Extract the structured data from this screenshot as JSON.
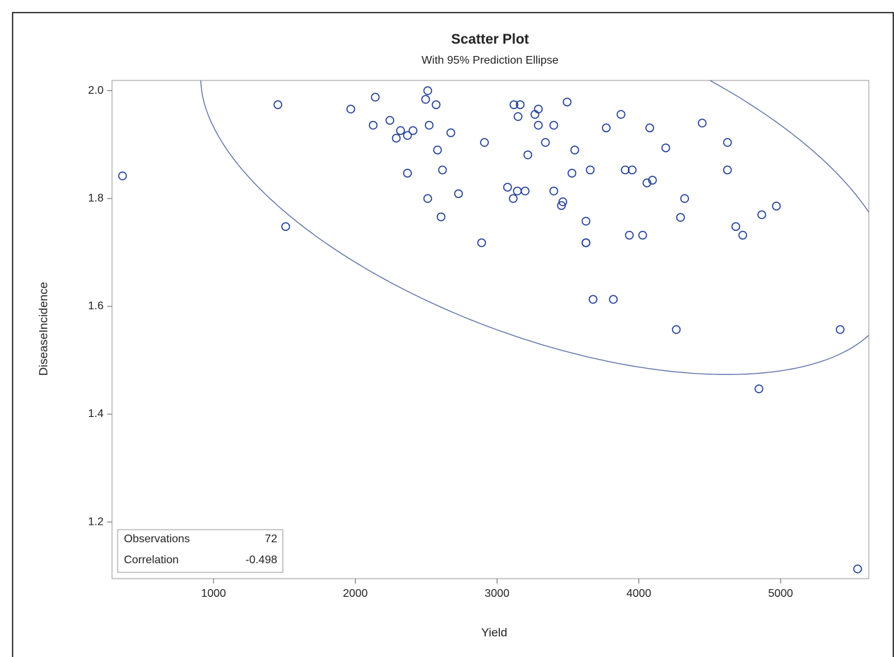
{
  "chart_data": {
    "type": "scatter",
    "title": "Scatter Plot",
    "subtitle": "With 95% Prediction Ellipse",
    "x_label": "Yield",
    "y_label": "DiseaseIncidence",
    "xlim": [
      284,
      5622
    ],
    "ylim": [
      1.095,
      2.019
    ],
    "xticks": [
      1000,
      2000,
      3000,
      4000,
      5000
    ],
    "yticks": [
      1.2,
      1.4,
      1.6,
      1.8,
      {
        "value": 2,
        "label": "2.0"
      }
    ],
    "statistics": [
      {
        "label": "Observations",
        "value": 72
      },
      {
        "label": "Correlation",
        "value": -0.498
      }
    ],
    "series": [
      {
        "color": "#1f3d99",
        "x": [
          358,
          1454,
          1509,
          1968,
          2141,
          2126,
          2244,
          2319,
          2289,
          2368,
          2407,
          2368,
          2511,
          2496,
          2570,
          2521,
          2580,
          2674,
          2615,
          2511,
          2605,
          2728,
          2911,
          2891,
          3074,
          3119,
          3163,
          3148,
          3267,
          3291,
          3291,
          3217,
          3143,
          3114,
          3198,
          3341,
          3494,
          3400,
          3548,
          3528,
          3400,
          3464,
          3454,
          3657,
          3627,
          3627,
          3677,
          3820,
          3770,
          3874,
          3904,
          3953,
          3933,
          4027,
          4057,
          4096,
          4077,
          4190,
          4323,
          4294,
          4264,
          4447,
          4625,
          4625,
          4684,
          4733,
          4867,
          4970,
          4847,
          5420,
          5543,
          3627
        ],
        "values": [
          1.842,
          1.974,
          1.748,
          1.966,
          1.988,
          1.936,
          1.945,
          1.926,
          1.912,
          1.917,
          1.926,
          1.847,
          2.0,
          1.984,
          1.974,
          1.936,
          1.89,
          1.922,
          1.853,
          1.8,
          1.766,
          1.809,
          1.904,
          1.718,
          1.821,
          1.974,
          1.974,
          1.952,
          1.956,
          1.966,
          1.936,
          1.881,
          1.814,
          1.8,
          1.814,
          1.904,
          1.979,
          1.936,
          1.89,
          1.847,
          1.814,
          1.794,
          1.787,
          1.853,
          1.758,
          1.718,
          1.613,
          1.613,
          1.931,
          1.956,
          1.853,
          1.853,
          1.732,
          1.732,
          1.829,
          1.834,
          1.931,
          1.894,
          1.8,
          1.765,
          1.557,
          1.94,
          1.904,
          1.853,
          1.748,
          1.732,
          1.77,
          1.786,
          1.447,
          1.557,
          1.113,
          1.718
        ]
      }
    ],
    "ellipse_color": "#5a6ea8"
  }
}
